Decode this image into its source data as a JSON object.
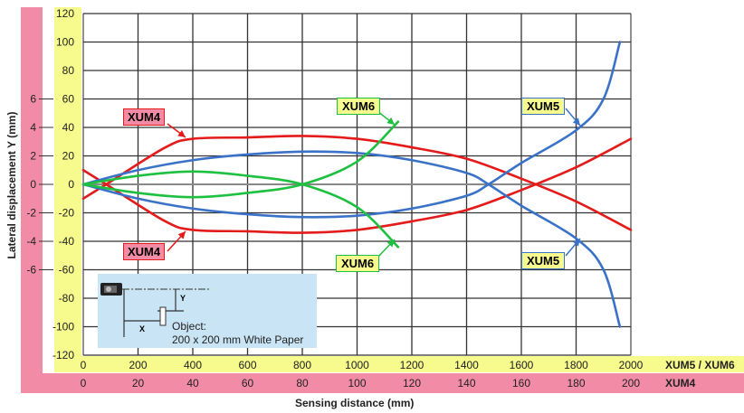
{
  "chart_data": {
    "type": "line",
    "title": "",
    "xlabel": "Sensing distance (mm)",
    "ylabel": "Lateral displacement Y (mm)",
    "x_axes": [
      {
        "name": "XUM5 / XUM6",
        "ticks": [
          0,
          200,
          400,
          600,
          800,
          1000,
          1200,
          1400,
          1600,
          1800,
          2000
        ],
        "range": [
          0,
          2000
        ]
      },
      {
        "name": "XUM4",
        "ticks": [
          0,
          20,
          40,
          60,
          80,
          100,
          120,
          140,
          160,
          180,
          200
        ],
        "range": [
          0,
          200
        ]
      }
    ],
    "y_axes": [
      {
        "name": "XUM5 / XUM6",
        "ticks": [
          120,
          100,
          80,
          60,
          40,
          20,
          0,
          -20,
          -40,
          -60,
          -80,
          -100,
          -120
        ],
        "range": [
          -120,
          120
        ]
      },
      {
        "name": "XUM4",
        "ticks": [
          6,
          4,
          2,
          0,
          -2,
          -4,
          -6
        ],
        "range": [
          -6,
          6
        ]
      }
    ],
    "grid": true,
    "series": [
      {
        "name": "XUM4",
        "color": "#e31b1b",
        "x": [
          0,
          10,
          30,
          40,
          60,
          80,
          100,
          120,
          140,
          160,
          180,
          200
        ],
        "upper": [
          -1,
          0.2,
          2.6,
          3.2,
          3.3,
          3.4,
          3.2,
          2.6,
          1.8,
          0.4,
          -1.2,
          -3.2
        ],
        "lower": [
          1,
          -0.2,
          -2.6,
          -3.2,
          -3.3,
          -3.4,
          -3.2,
          -2.6,
          -1.8,
          -0.4,
          1.2,
          3.2
        ]
      },
      {
        "name": "XUM5",
        "color": "#3a72c8",
        "x": [
          0,
          200,
          400,
          600,
          800,
          1000,
          1200,
          1400,
          1480,
          1600,
          1800,
          1900,
          1960
        ],
        "upper": [
          0,
          10,
          17,
          21,
          23,
          22,
          17,
          8,
          0,
          -15,
          -38,
          -60,
          -100
        ],
        "lower": [
          0,
          -10,
          -17,
          -21,
          -23,
          -22,
          -17,
          -8,
          0,
          15,
          38,
          60,
          100
        ]
      },
      {
        "name": "XUM6",
        "color": "#1ec040",
        "x": [
          0,
          200,
          400,
          600,
          800,
          1000,
          1150
        ],
        "upper": [
          0,
          -6,
          -9,
          -6,
          0,
          16,
          44
        ],
        "lower": [
          0,
          6,
          9,
          6,
          0,
          -16,
          -44
        ]
      }
    ],
    "annotations": [
      {
        "text": "XUM4",
        "position": "upper"
      },
      {
        "text": "XUM4",
        "position": "lower"
      },
      {
        "text": "XUM6",
        "position": "upper"
      },
      {
        "text": "XUM6",
        "position": "lower"
      },
      {
        "text": "XUM5",
        "position": "upper"
      },
      {
        "text": "XUM5",
        "position": "lower"
      }
    ],
    "inset": {
      "object_label": "Object:",
      "object_desc": "200 x 200 mm White Paper",
      "x_label": "X",
      "y_label": "Y"
    }
  },
  "labels": {
    "xlabel": "Sensing distance (mm)",
    "ylabel": "Lateral displacement Y (mm)",
    "xaxis1_name": "XUM5 / XUM6",
    "xaxis2_name": "XUM4",
    "ann_xum4": "XUM4",
    "ann_xum5": "XUM5",
    "ann_xum6": "XUM6",
    "inset_obj": "Object:",
    "inset_desc": "200 x 200 mm White Paper",
    "inset_x": "X",
    "inset_y": "Y"
  }
}
